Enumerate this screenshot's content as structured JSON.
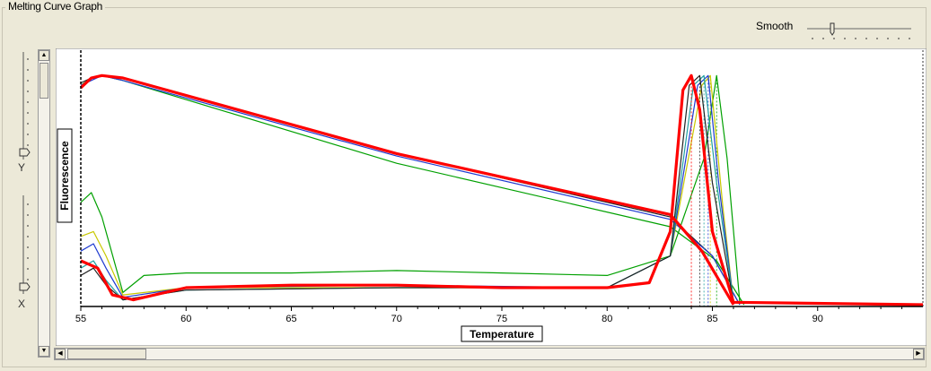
{
  "window": {
    "group_title": "Melting Curve Graph"
  },
  "controls": {
    "smooth_label": "Smooth",
    "y_zoom_label": "Y",
    "x_zoom_label": "X"
  },
  "chart_data": {
    "type": "line",
    "xlabel": "Temperature",
    "ylabel": "Fluorescence",
    "xlim": [
      55,
      95
    ],
    "x_ticks": [
      "55",
      "60",
      "65",
      "70",
      "75",
      "80",
      "85",
      "90"
    ],
    "grid": false,
    "series": [
      {
        "color": "#ff0000",
        "highlight": true,
        "kind": "melt",
        "x": [
          55,
          55.5,
          56,
          57,
          70,
          83,
          84.5,
          86
        ],
        "y": [
          0.89,
          0.93,
          0.94,
          0.93,
          0.62,
          0.37,
          0.22,
          0.0
        ]
      },
      {
        "color": "#00a000",
        "kind": "melt",
        "x": [
          55,
          55.5,
          56,
          57,
          70,
          83,
          85.2,
          86.5
        ],
        "y": [
          0.9,
          0.93,
          0.94,
          0.92,
          0.58,
          0.32,
          0.18,
          0.0
        ]
      },
      {
        "color": "#222222",
        "kind": "melt",
        "x": [
          55,
          55.5,
          56,
          57,
          70,
          83,
          85,
          86.3
        ],
        "y": [
          0.91,
          0.93,
          0.94,
          0.93,
          0.62,
          0.36,
          0.2,
          0.0
        ]
      },
      {
        "color": "#1e3ad0",
        "kind": "melt",
        "x": [
          55,
          55.5,
          56,
          57,
          70,
          83,
          85,
          86.3
        ],
        "y": [
          0.9,
          0.92,
          0.94,
          0.92,
          0.61,
          0.35,
          0.2,
          0.0
        ]
      },
      {
        "color": "#ff0000",
        "highlight": true,
        "kind": "deriv",
        "x": [
          55,
          55.8,
          56.5,
          57.5,
          60,
          65,
          70,
          75,
          80,
          82,
          83,
          83.6,
          84,
          84.4,
          85,
          86,
          95
        ],
        "y": [
          0.18,
          0.15,
          0.04,
          0.02,
          0.07,
          0.08,
          0.08,
          0.07,
          0.07,
          0.09,
          0.3,
          0.88,
          0.94,
          0.8,
          0.3,
          0.01,
          0.0
        ]
      },
      {
        "color": "#00a000",
        "kind": "deriv",
        "x": [
          55,
          55.5,
          56,
          57,
          58,
          60,
          65,
          70,
          75,
          80,
          83,
          84.6,
          85.2,
          85.7,
          86.3,
          95
        ],
        "y": [
          0.42,
          0.46,
          0.36,
          0.05,
          0.12,
          0.13,
          0.13,
          0.14,
          0.13,
          0.12,
          0.2,
          0.6,
          0.94,
          0.6,
          0.01,
          0.0
        ]
      },
      {
        "color": "#c8c800",
        "kind": "deriv",
        "x": [
          55,
          55.6,
          56.2,
          57,
          60,
          70,
          80,
          83,
          84.5,
          84.9,
          85.5,
          86,
          95
        ],
        "y": [
          0.28,
          0.3,
          0.2,
          0.04,
          0.07,
          0.07,
          0.07,
          0.2,
          0.9,
          0.94,
          0.4,
          0.01,
          0.0
        ]
      },
      {
        "color": "#1e3ad0",
        "kind": "deriv",
        "x": [
          55,
          55.6,
          56.2,
          57,
          60,
          70,
          80,
          83,
          84.3,
          84.8,
          85.3,
          86,
          95
        ],
        "y": [
          0.22,
          0.25,
          0.15,
          0.03,
          0.07,
          0.08,
          0.07,
          0.2,
          0.9,
          0.94,
          0.5,
          0.01,
          0.0
        ]
      },
      {
        "color": "#20a0a0",
        "kind": "deriv",
        "x": [
          55,
          55.6,
          56.2,
          57,
          60,
          70,
          80,
          83,
          84.1,
          84.6,
          85.2,
          86,
          95
        ],
        "y": [
          0.15,
          0.18,
          0.1,
          0.02,
          0.06,
          0.07,
          0.07,
          0.2,
          0.9,
          0.94,
          0.5,
          0.01,
          0.0
        ]
      },
      {
        "color": "#222222",
        "kind": "deriv",
        "x": [
          55,
          55.6,
          56.2,
          57,
          60,
          70,
          80,
          83,
          83.9,
          84.4,
          85,
          86,
          95
        ],
        "y": [
          0.12,
          0.15,
          0.08,
          0.02,
          0.06,
          0.07,
          0.07,
          0.2,
          0.9,
          0.94,
          0.5,
          0.01,
          0.0
        ]
      }
    ]
  }
}
